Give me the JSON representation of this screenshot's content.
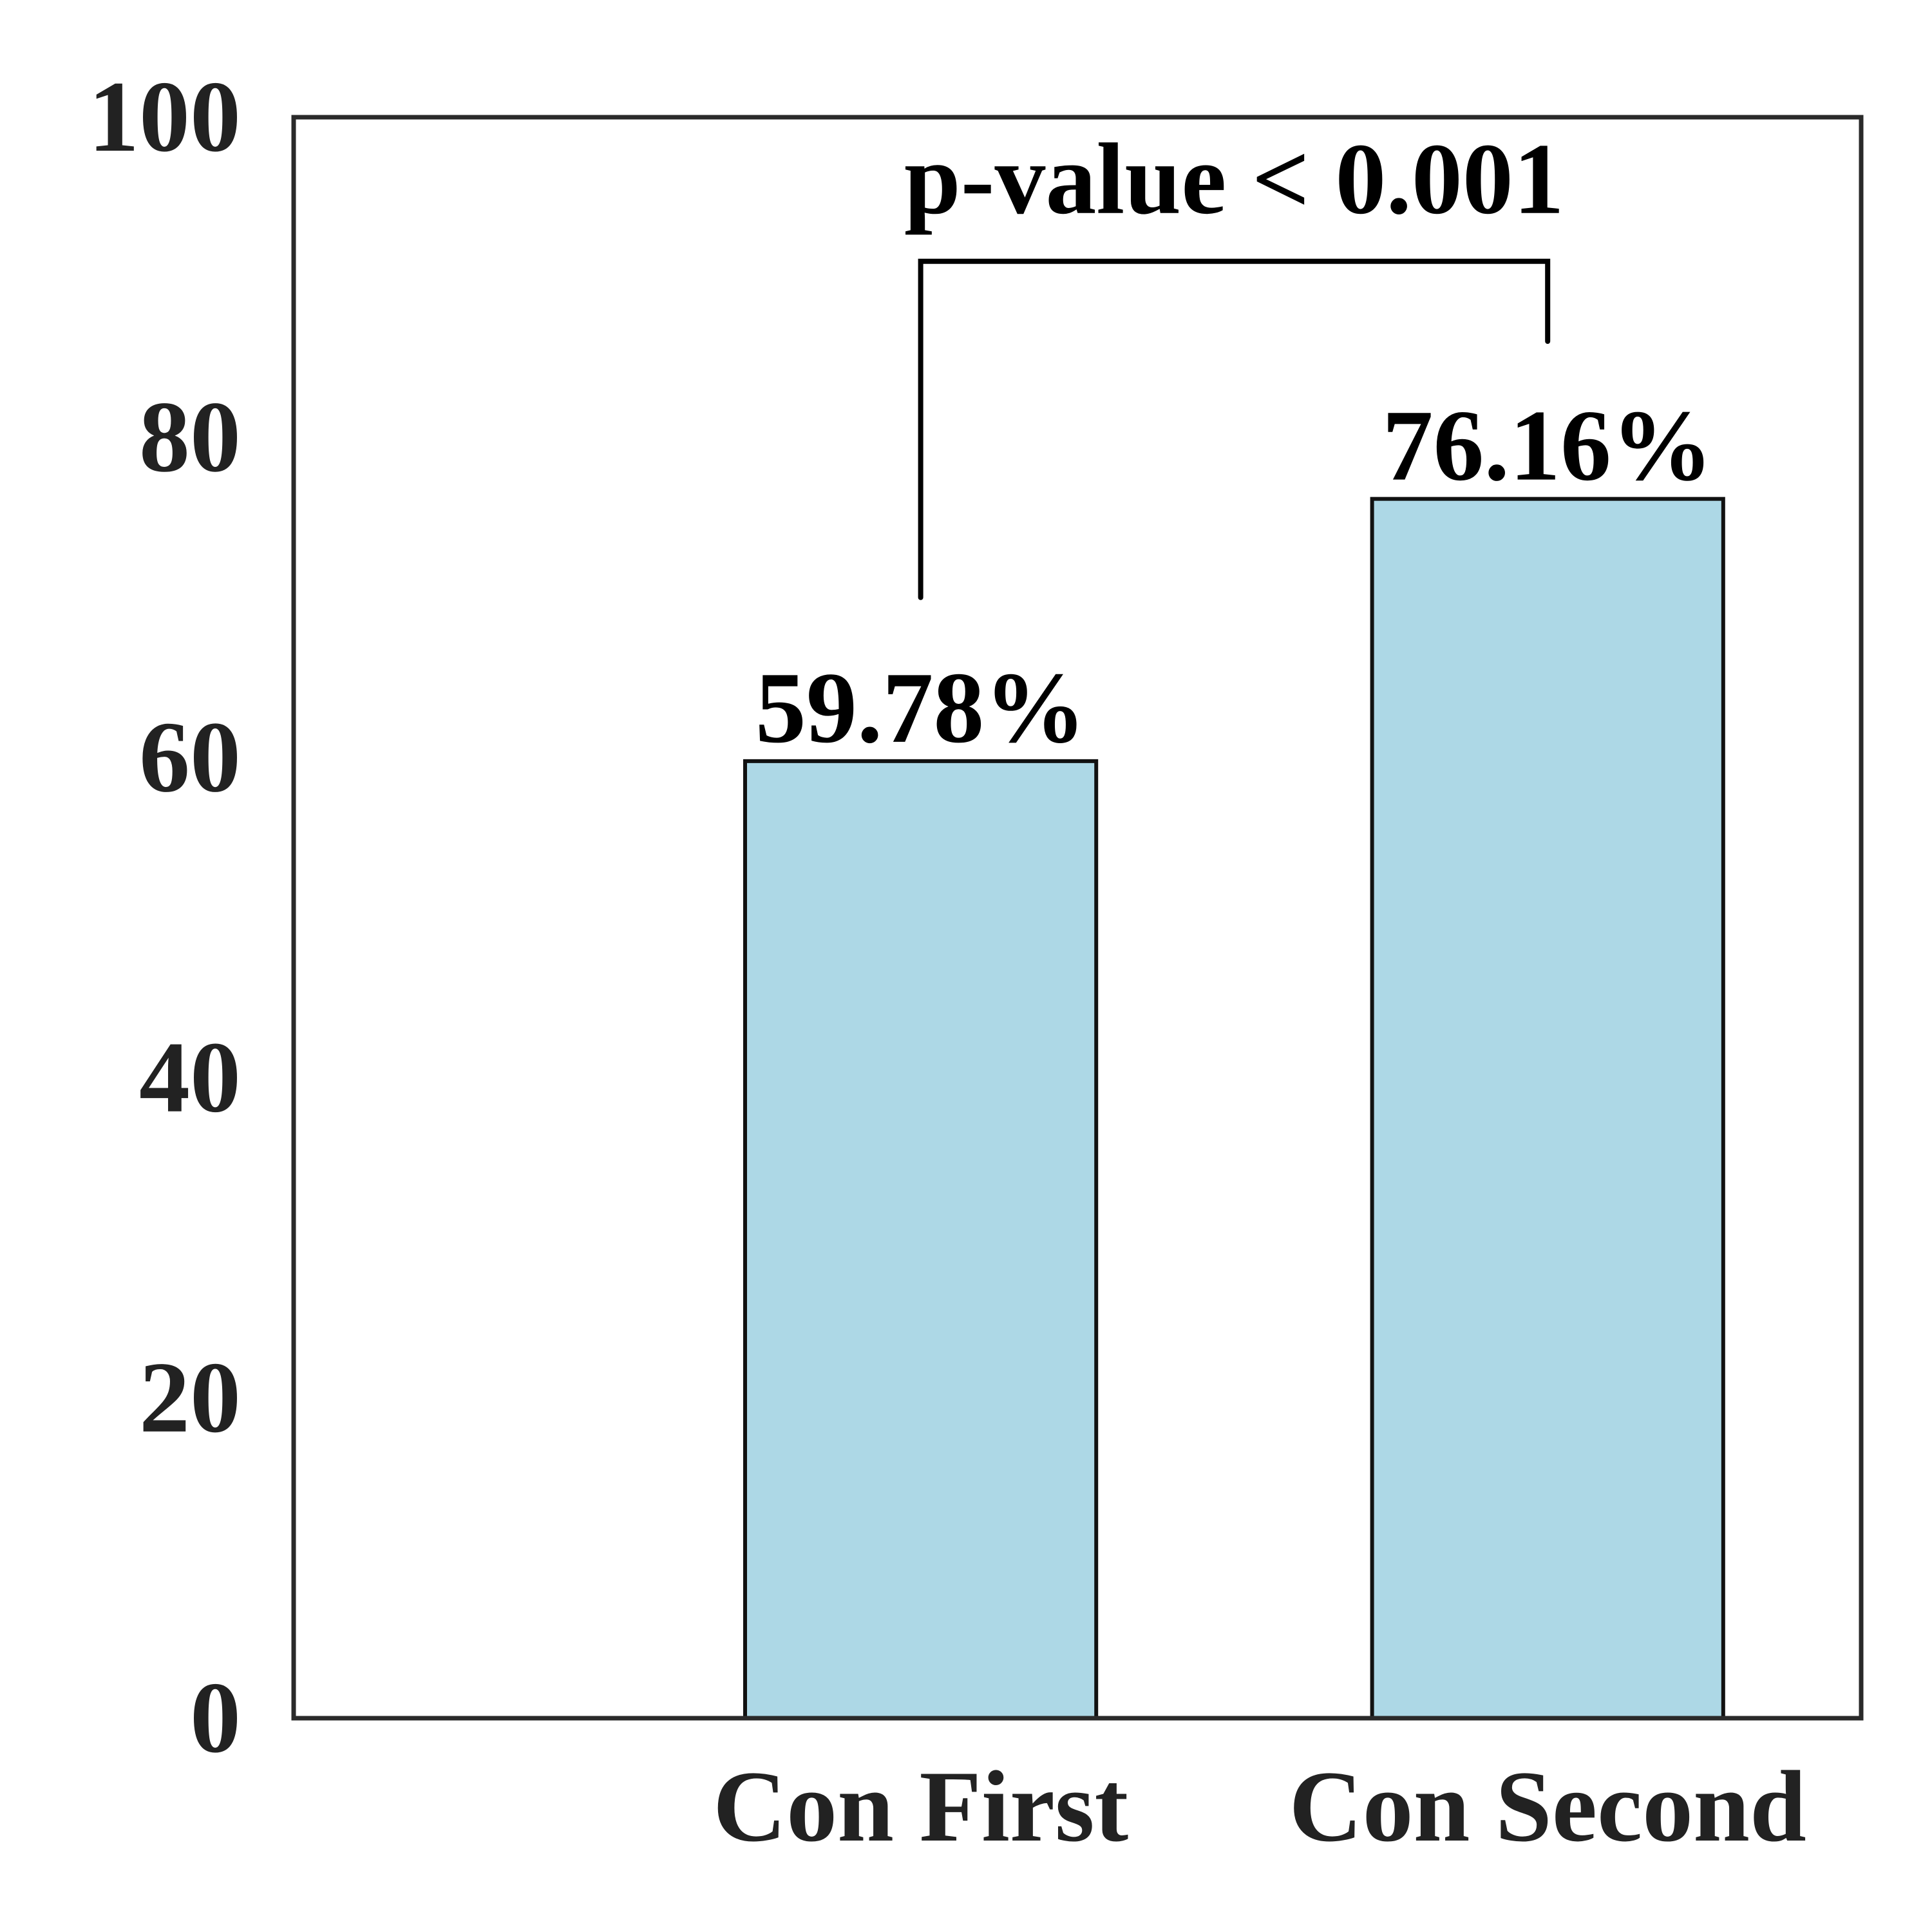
{
  "chart_data": {
    "type": "bar",
    "categories": [
      "Con First",
      "Con Second"
    ],
    "values": [
      59.78,
      76.16
    ],
    "value_labels": [
      "59.78%",
      "76.16%"
    ],
    "yticks": [
      "0",
      "20",
      "40",
      "60",
      "80",
      "100"
    ],
    "ylim": [
      0,
      100
    ],
    "title": "",
    "xlabel": "",
    "ylabel": "",
    "grid": false,
    "annotation": {
      "text": "p-value < 0.001",
      "between": [
        "Con First",
        "Con Second"
      ],
      "bracket_level": 91,
      "left_drop_to": 70,
      "right_drop_to": 86
    },
    "colors": {
      "bar_fill": "#add8e6",
      "bar_edge": "#111111",
      "frame": "#2a2a2a",
      "text": "#222222"
    }
  }
}
